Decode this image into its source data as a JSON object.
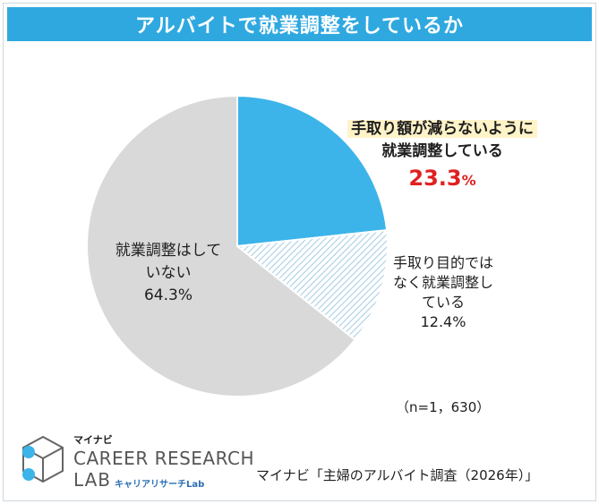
{
  "title": "アルバイトで就業調整をしているか",
  "colors": {
    "banner": "#2fa8e0",
    "slice_main": "#3cb4ea",
    "slice_mid_hatch": "#aacfe6",
    "slice_big": "#d9d9d9"
  },
  "chart_data": {
    "type": "pie",
    "start_angle_deg": 0,
    "direction": "clockwise",
    "slices": [
      {
        "line1": "手取り額が減らないように",
        "line2": "就業調整している",
        "value": 23.3,
        "value_label": "23.3",
        "unit": "%"
      },
      {
        "line1": "手取り目的では",
        "line2": "なく就業調整し",
        "line3": "ている",
        "value": 12.4,
        "value_label": "12.4%"
      },
      {
        "line1": "就業調整はして",
        "line2": "いない",
        "value": 64.3,
        "value_label": "64.3%"
      }
    ]
  },
  "note": "（n=1，630）",
  "source": "マイナビ「主婦のアルバイト調査（2026年）」",
  "logo": {
    "brand": "マイナビ",
    "line1": "CAREER RESEARCH",
    "line2": "LAB",
    "sub": "キャリアリサーチLab"
  }
}
